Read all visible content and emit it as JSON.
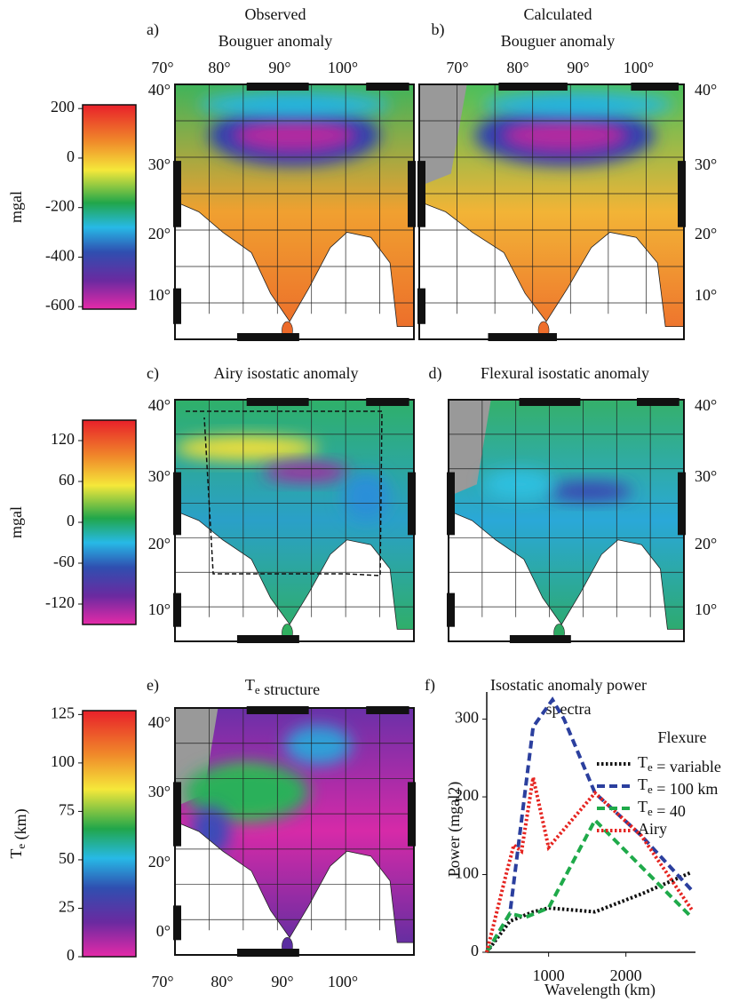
{
  "panels": [
    {
      "label": "a)",
      "title": [
        "Observed",
        "Bouguer anomaly"
      ]
    },
    {
      "label": "b)",
      "title": [
        "Calculated",
        "Bouguer anomaly"
      ]
    },
    {
      "label": "c)",
      "title": [
        "Airy isostatic anomaly"
      ]
    },
    {
      "label": "d)",
      "title": [
        "Flexural isostatic anomaly"
      ]
    },
    {
      "label": "e)",
      "title": [
        "Te structure"
      ]
    },
    {
      "label": "f)",
      "title": [
        "Isostatic anomaly power",
        "spectra"
      ]
    }
  ],
  "map_axes": {
    "a": {
      "top": [
        "70°",
        "80°",
        "90°",
        "100°"
      ],
      "left": [
        "40°",
        "30°",
        "20°",
        "10°"
      ]
    },
    "b": {
      "top": [
        "70°",
        "80°",
        "90°",
        "100°"
      ],
      "right": [
        "40°",
        "30°",
        "20°",
        "10°"
      ]
    },
    "c": {
      "left": [
        "40°",
        "30°",
        "20°",
        "10°"
      ]
    },
    "d": {
      "right": [
        "40°",
        "30°",
        "20°",
        "10°"
      ]
    },
    "e": {
      "left": [
        "40°",
        "30°",
        "20°",
        "0°"
      ],
      "bottom": [
        "70°",
        "80°",
        "90°",
        "100°"
      ]
    }
  },
  "colorbars": [
    {
      "label": "mgal",
      "lim": [
        -610,
        215
      ],
      "ticks": [
        200,
        0,
        -200,
        -400,
        -600
      ]
    },
    {
      "label": "mgal",
      "lim": [
        -150,
        150
      ],
      "ticks": [
        120,
        60,
        0,
        -60,
        -120
      ]
    },
    {
      "label": "Te (km)",
      "lim": [
        0,
        127
      ],
      "ticks": [
        125,
        100,
        75,
        50,
        25,
        0
      ]
    }
  ],
  "chart_data": {
    "type": "line",
    "xlabel": "Wavelength (km)",
    "ylabel": "Power (mgal2)",
    "xlim": [
      200,
      2900
    ],
    "ylim": [
      0,
      335
    ],
    "xticks": [
      1000,
      2000
    ],
    "yticks": [
      0,
      100,
      200,
      300
    ],
    "legend_title": "Flexure",
    "series": [
      {
        "name": "Te = variable",
        "color": "#111111",
        "style": "dotted",
        "x": [
          200,
          500,
          800,
          1000,
          1600,
          2200,
          2850
        ],
        "values": [
          0,
          40,
          52,
          57,
          52,
          75,
          103
        ]
      },
      {
        "name": "Te = 100 km",
        "color": "#2b3f9e",
        "style": "dashed",
        "x": [
          200,
          500,
          800,
          1050,
          1200,
          1600,
          2200,
          2850
        ],
        "values": [
          0,
          50,
          290,
          325,
          300,
          205,
          150,
          80
        ]
      },
      {
        "name": "Te = 40",
        "color": "#1faa4a",
        "style": "dashed",
        "x": [
          200,
          500,
          700,
          1000,
          1600,
          2200,
          2850
        ],
        "values": [
          0,
          50,
          45,
          57,
          170,
          110,
          45
        ]
      },
      {
        "name": "Airy",
        "color": "#e52420",
        "style": "dotted",
        "x": [
          200,
          450,
          550,
          650,
          800,
          1000,
          1600,
          2200,
          2850
        ],
        "values": [
          0,
          100,
          138,
          130,
          225,
          135,
          205,
          150,
          55
        ]
      }
    ]
  }
}
